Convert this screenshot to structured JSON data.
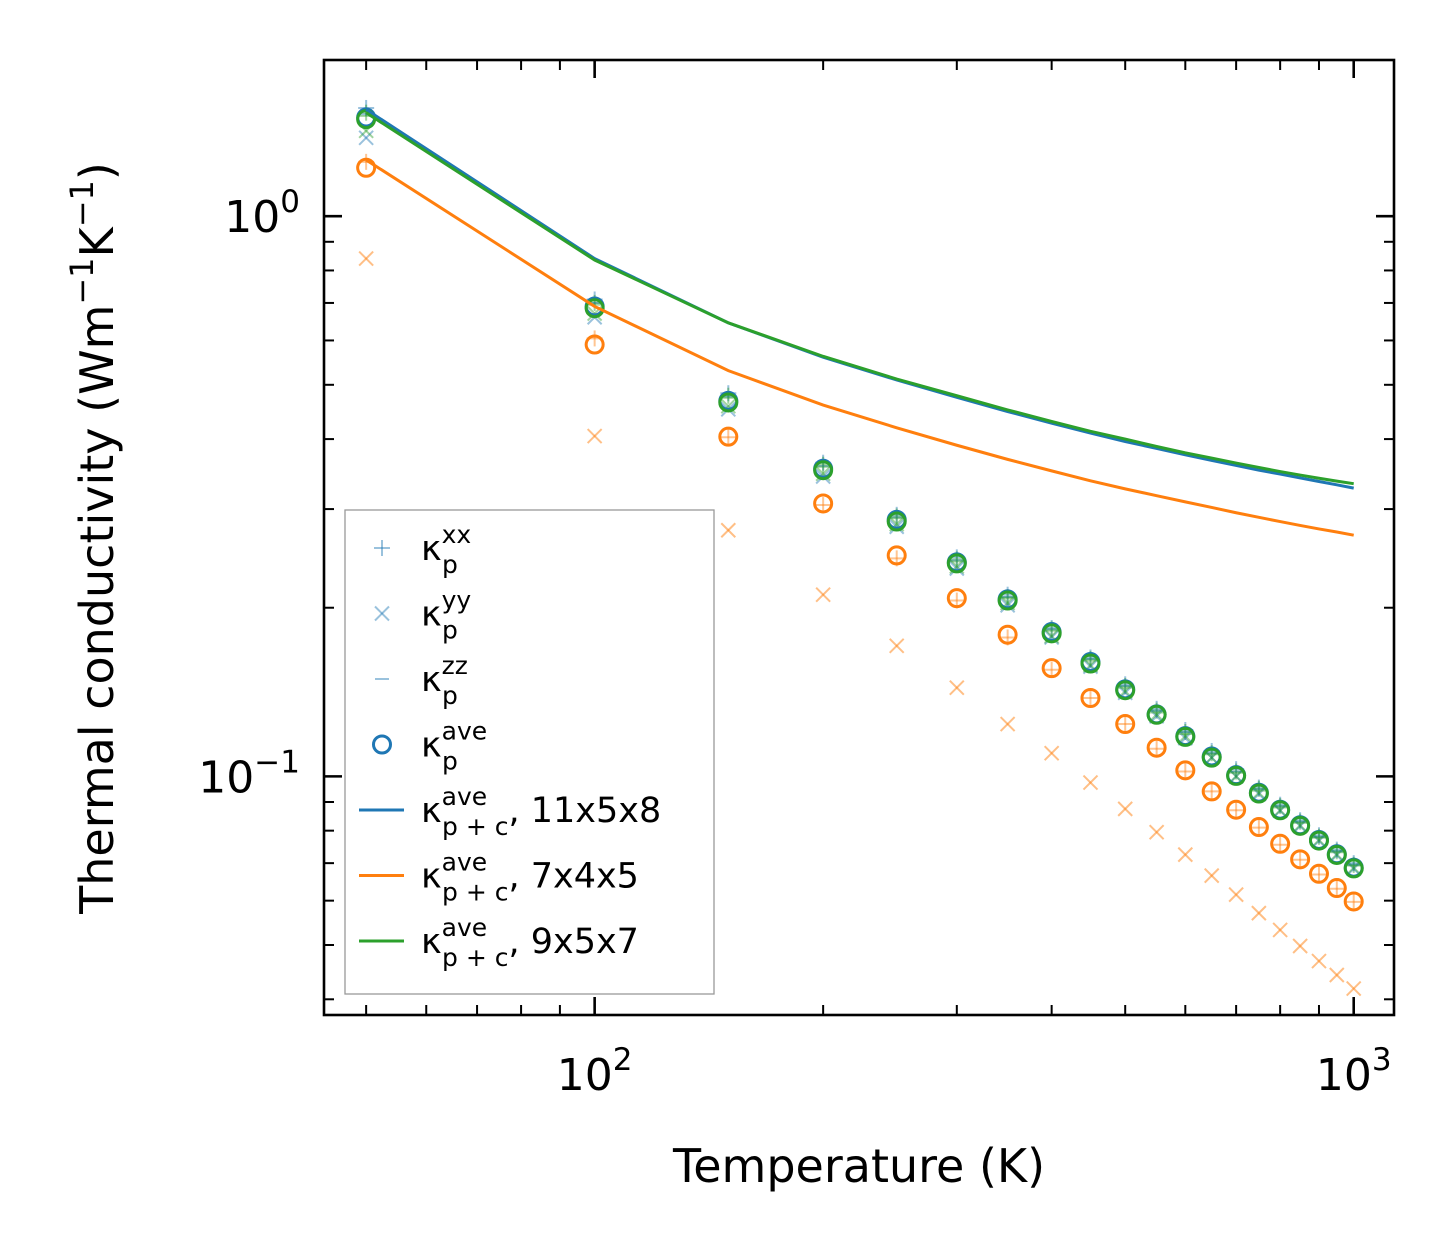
{
  "chart_data": {
    "type": "scatter",
    "xscale": "log",
    "yscale": "log",
    "xlim": [
      44,
      1130
    ],
    "ylim": [
      0.0375,
      1.9
    ],
    "xlabel": "Temperature (K)",
    "ylabel_main": "Thermal conductivity (Wm",
    "ylabel_sup1": "−1",
    "ylabel_mid": "K",
    "ylabel_sup2": "−1",
    "ylabel_end": ")",
    "x_ticks": [
      {
        "value": 100,
        "base": "10",
        "exp": "2"
      },
      {
        "value": 1000,
        "base": "10",
        "exp": "3"
      }
    ],
    "y_ticks": [
      {
        "value": 1.0,
        "base": "10",
        "exp": "0"
      },
      {
        "value": 0.1,
        "base": "10",
        "exp": "−1"
      }
    ],
    "temperatures": [
      50,
      100,
      150,
      200,
      250,
      300,
      350,
      400,
      450,
      500,
      550,
      600,
      650,
      700,
      750,
      800,
      850,
      900,
      950,
      1000
    ],
    "series": [
      {
        "id": "kxx_11",
        "kind": "plus",
        "color": "#1f77b4",
        "alpha": 0.45,
        "values": [
          1.56,
          0.71,
          0.483,
          0.363,
          0.293,
          0.246,
          0.211,
          0.184,
          0.163,
          0.146,
          0.132,
          0.121,
          0.111,
          0.103,
          0.0955,
          0.089,
          0.0835,
          0.0785,
          0.074,
          0.07
        ]
      },
      {
        "id": "kxx_9",
        "kind": "plus",
        "color": "#2ca02c",
        "alpha": 0.45,
        "values": [
          1.53,
          0.7,
          0.478,
          0.36,
          0.291,
          0.244,
          0.209,
          0.183,
          0.162,
          0.145,
          0.131,
          0.12,
          0.11,
          0.102,
          0.095,
          0.0885,
          0.083,
          0.078,
          0.0735,
          0.0695
        ]
      },
      {
        "id": "kxx_7",
        "kind": "plus",
        "color": "#ff7f0e",
        "alpha": 0.45,
        "values": [
          1.25,
          0.605,
          0.403,
          0.305,
          0.245,
          0.206,
          0.177,
          0.155,
          0.138,
          0.124,
          0.112,
          0.102,
          0.094,
          0.087,
          0.081,
          0.0755,
          0.071,
          0.0668,
          0.063,
          0.0597
        ]
      },
      {
        "id": "kyy_11",
        "kind": "cross",
        "color": "#1f77b4",
        "alpha": 0.45,
        "values": [
          1.38,
          0.66,
          0.452,
          0.343,
          0.279,
          0.235,
          0.202,
          0.177,
          0.157,
          0.141,
          0.128,
          0.117,
          0.108,
          0.1,
          0.093,
          0.0868,
          0.0815,
          0.0767,
          0.0723,
          0.0684
        ]
      },
      {
        "id": "kyy_9",
        "kind": "cross",
        "color": "#2ca02c",
        "alpha": 0.45,
        "values": [
          1.42,
          0.67,
          0.458,
          0.347,
          0.282,
          0.237,
          0.204,
          0.178,
          0.158,
          0.142,
          0.129,
          0.118,
          0.108,
          0.1,
          0.0935,
          0.087,
          0.0818,
          0.077,
          0.0726,
          0.0687
        ]
      },
      {
        "id": "kyy_7",
        "kind": "cross",
        "color": "#ff7f0e",
        "alpha": 0.5,
        "values": [
          0.84,
          0.405,
          0.275,
          0.211,
          0.171,
          0.144,
          0.124,
          0.11,
          0.0975,
          0.0875,
          0.0795,
          0.0725,
          0.0665,
          0.0615,
          0.057,
          0.0532,
          0.0498,
          0.0468,
          0.0442,
          0.0418
        ]
      },
      {
        "id": "kzz_11",
        "kind": "dash",
        "color": "#1f77b4",
        "alpha": 0.45,
        "values": [
          1.52,
          0.7,
          0.476,
          0.358,
          0.29,
          0.243,
          0.209,
          0.183,
          0.162,
          0.145,
          0.131,
          0.12,
          0.11,
          0.102,
          0.0948,
          0.0884,
          0.083,
          0.078,
          0.0735,
          0.0696
        ]
      },
      {
        "id": "kzz_9",
        "kind": "dash",
        "color": "#2ca02c",
        "alpha": 0.45,
        "values": [
          1.51,
          0.695,
          0.474,
          0.357,
          0.289,
          0.242,
          0.208,
          0.182,
          0.161,
          0.144,
          0.13,
          0.119,
          0.1095,
          0.1015,
          0.0943,
          0.088,
          0.0826,
          0.0777,
          0.0732,
          0.0693
        ]
      },
      {
        "id": "kave_11",
        "kind": "circle",
        "color": "#1f77b4",
        "alpha": 1,
        "values": [
          1.5,
          0.69,
          0.468,
          0.354,
          0.287,
          0.241,
          0.207,
          0.181,
          0.16,
          0.143,
          0.129,
          0.118,
          0.1085,
          0.1005,
          0.0935,
          0.0872,
          0.0818,
          0.077,
          0.0726,
          0.0687
        ]
      },
      {
        "id": "kave_7",
        "kind": "circle",
        "color": "#ff7f0e",
        "alpha": 1,
        "values": [
          1.22,
          0.59,
          0.404,
          0.307,
          0.248,
          0.208,
          0.179,
          0.156,
          0.138,
          0.124,
          0.1125,
          0.1025,
          0.094,
          0.0872,
          0.0812,
          0.0758,
          0.0711,
          0.067,
          0.0632,
          0.0598
        ]
      },
      {
        "id": "kave_9",
        "kind": "circle",
        "color": "#2ca02c",
        "alpha": 1,
        "values": [
          1.49,
          0.685,
          0.465,
          0.352,
          0.285,
          0.24,
          0.206,
          0.18,
          0.159,
          0.1425,
          0.1288,
          0.1176,
          0.108,
          0.1002,
          0.0932,
          0.087,
          0.0816,
          0.0768,
          0.0724,
          0.0685
        ]
      },
      {
        "id": "kpc_11",
        "kind": "line",
        "color": "#1f77b4",
        "alpha": 1,
        "values": [
          1.55,
          0.84,
          0.645,
          0.56,
          0.51,
          0.475,
          0.448,
          0.427,
          0.41,
          0.396,
          0.385,
          0.375,
          0.3665,
          0.359,
          0.352,
          0.3465,
          0.341,
          0.336,
          0.3315,
          0.327
        ]
      },
      {
        "id": "kpc_7",
        "kind": "line",
        "color": "#ff7f0e",
        "alpha": 1,
        "values": [
          1.26,
          0.69,
          0.53,
          0.46,
          0.419,
          0.39,
          0.368,
          0.351,
          0.337,
          0.326,
          0.317,
          0.309,
          0.302,
          0.2955,
          0.29,
          0.285,
          0.2805,
          0.2765,
          0.273,
          0.2695
        ]
      },
      {
        "id": "kpc_9",
        "kind": "line",
        "color": "#2ca02c",
        "alpha": 1,
        "values": [
          1.53,
          0.835,
          0.645,
          0.562,
          0.512,
          0.478,
          0.451,
          0.43,
          0.413,
          0.4,
          0.388,
          0.378,
          0.37,
          0.3625,
          0.356,
          0.35,
          0.345,
          0.3405,
          0.3365,
          0.333
        ]
      }
    ],
    "legend": {
      "position": "lower-left",
      "entries": [
        {
          "symbol": "plus",
          "color": "#1f77b4",
          "alpha": 0.45,
          "base": "κ",
          "sup": "xx",
          "sub": "p",
          "suffix": ""
        },
        {
          "symbol": "cross",
          "color": "#1f77b4",
          "alpha": 0.45,
          "base": "κ",
          "sup": "yy",
          "sub": "p",
          "suffix": ""
        },
        {
          "symbol": "dash",
          "color": "#1f77b4",
          "alpha": 0.45,
          "base": "κ",
          "sup": "zz",
          "sub": "p",
          "suffix": ""
        },
        {
          "symbol": "circle",
          "color": "#1f77b4",
          "alpha": 1,
          "base": "κ",
          "sup": "ave",
          "sub": "p",
          "suffix": ""
        },
        {
          "symbol": "line",
          "color": "#1f77b4",
          "alpha": 1,
          "base": "κ",
          "sup": "ave",
          "sub": "p + c",
          "suffix": ", 11x5x8"
        },
        {
          "symbol": "line",
          "color": "#ff7f0e",
          "alpha": 1,
          "base": "κ",
          "sup": "ave",
          "sub": "p + c",
          "suffix": ", 7x4x5"
        },
        {
          "symbol": "line",
          "color": "#2ca02c",
          "alpha": 1,
          "base": "κ",
          "sup": "ave",
          "sub": "p + c",
          "suffix": ", 9x5x7"
        }
      ]
    }
  }
}
